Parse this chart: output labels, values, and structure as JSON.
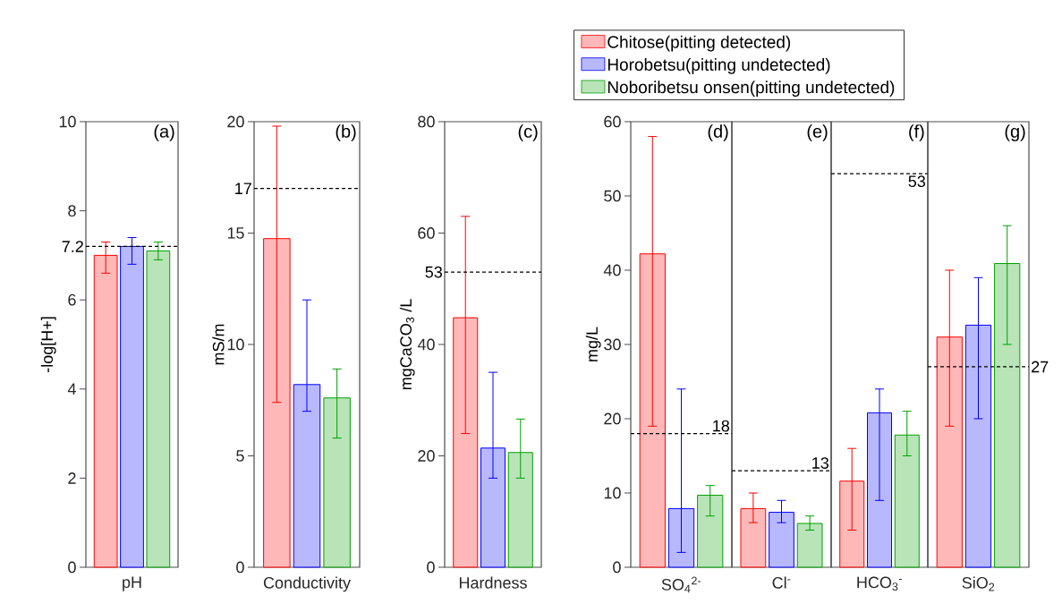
{
  "chart_data": [
    {
      "type": "bar",
      "title": "(a)",
      "categories": [
        "pH"
      ],
      "ylabel": "-log[H+]",
      "ylim": [
        0,
        10
      ],
      "yticks": [
        0,
        2,
        4,
        6,
        8,
        10
      ],
      "series": [
        {
          "color": "#ff0000",
          "values": [
            7.0
          ],
          "errors": [
            [
              6.6,
              7.3
            ]
          ]
        },
        {
          "color": "#0000ff",
          "values": [
            7.2
          ],
          "errors": [
            [
              6.8,
              7.4
            ]
          ]
        },
        {
          "color": "#00a000",
          "values": [
            7.1
          ],
          "errors": [
            [
              6.9,
              7.3
            ]
          ]
        }
      ],
      "ref_lines": [
        {
          "axis": "y",
          "value": 7.2,
          "label": "7.2",
          "color": "#000000",
          "line_style": "dashed"
        }
      ]
    },
    {
      "type": "bar",
      "title": "(b)",
      "categories": [
        "Conductivity"
      ],
      "ylabel": "mS/m",
      "ylim": [
        0,
        20
      ],
      "yticks": [
        0,
        5,
        10,
        15,
        20
      ],
      "series": [
        {
          "color": "#ff0000",
          "values": [
            14.75
          ],
          "errors": [
            [
              7.4,
              19.8
            ]
          ]
        },
        {
          "color": "#0000ff",
          "values": [
            8.2
          ],
          "errors": [
            [
              7.0,
              12.0
            ]
          ]
        },
        {
          "color": "#00a000",
          "values": [
            7.6
          ],
          "errors": [
            [
              5.8,
              8.9
            ]
          ]
        }
      ],
      "ref_lines": [
        {
          "axis": "y",
          "value": 17,
          "label": "17",
          "color": "#000000",
          "line_style": "dashed"
        }
      ]
    },
    {
      "type": "bar",
      "title": "(c)",
      "categories": [
        "Hardness"
      ],
      "ylabel": "mgCaCO$_{3}$ /L",
      "ylim": [
        0,
        80
      ],
      "yticks": [
        0,
        20,
        40,
        60,
        80
      ],
      "series": [
        {
          "color": "#ff0000",
          "values": [
            44.8
          ],
          "errors": [
            [
              24.0,
              63.0
            ]
          ]
        },
        {
          "color": "#0000ff",
          "values": [
            21.4
          ],
          "errors": [
            [
              16.0,
              35.0
            ]
          ]
        },
        {
          "color": "#00a000",
          "values": [
            20.6
          ],
          "errors": [
            [
              16.0,
              26.6
            ]
          ]
        }
      ],
      "ref_lines": [
        {
          "axis": "y",
          "value": 53,
          "label": "53",
          "color": "#000000",
          "line_style": "dashed"
        }
      ]
    },
    {
      "type": "bar",
      "title": "(d)",
      "categories": [
        "SO$_{4}$$^{2-}$"
      ],
      "ylabel": "mg/L",
      "ylim": [
        0,
        60
      ],
      "yticks": [
        0,
        10,
        20,
        30,
        40,
        50,
        60
      ],
      "legend": "top",
      "series": [
        {
          "name": "Chitose(pitting detected)",
          "color": "#ff0000",
          "values": [
            42.2
          ],
          "errors": [
            [
              19.0,
              58.0
            ]
          ]
        },
        {
          "name": "Horobetsu(pitting undetected)",
          "color": "#0000ff",
          "values": [
            7.9
          ],
          "errors": [
            [
              2.0,
              24.0
            ]
          ]
        },
        {
          "name": "Noboribetsu onsen(pitting undetected)",
          "color": "#00a000",
          "values": [
            9.7
          ],
          "errors": [
            [
              6.9,
              11.0
            ]
          ]
        }
      ],
      "ref_lines": [
        {
          "axis": "y",
          "value": 18,
          "label": "18",
          "color": "#000000",
          "line_style": "dashed"
        }
      ]
    },
    {
      "type": "bar",
      "title": "(e)",
      "categories": [
        "Cl$^{-}$"
      ],
      "ylim": [
        0,
        60
      ],
      "tick_labels": "x",
      "series": [
        {
          "color": "#ff0000",
          "values": [
            7.9
          ],
          "errors": [
            [
              6.0,
              10.0
            ]
          ]
        },
        {
          "color": "#0000ff",
          "values": [
            7.4
          ],
          "errors": [
            [
              6.0,
              9.0
            ]
          ]
        },
        {
          "color": "#00a000",
          "values": [
            5.9
          ],
          "errors": [
            [
              5.0,
              6.9
            ]
          ]
        }
      ],
      "ref_lines": [
        {
          "axis": "y",
          "value": 13,
          "label": "13",
          "color": "#000000",
          "line_style": "dashed"
        }
      ]
    },
    {
      "type": "bar",
      "title": "(f)",
      "categories": [
        "HCO$_{3}$$^{-}$"
      ],
      "ylim": [
        0,
        60
      ],
      "tick_labels": "x",
      "series": [
        {
          "color": "#ff0000",
          "values": [
            11.6
          ],
          "errors": [
            [
              5.0,
              16.0
            ]
          ]
        },
        {
          "color": "#0000ff",
          "values": [
            20.8
          ],
          "errors": [
            [
              9.0,
              24.0
            ]
          ]
        },
        {
          "color": "#00a000",
          "values": [
            17.8
          ],
          "errors": [
            [
              15.0,
              21.0
            ]
          ]
        }
      ],
      "ref_lines": [
        {
          "axis": "y",
          "value": 53,
          "label": "53",
          "color": "#000000",
          "line_style": "dashed"
        }
      ]
    },
    {
      "type": "bar",
      "title": "(g)",
      "categories": [
        "SiO$_{2}$"
      ],
      "ylim": [
        0,
        60
      ],
      "tick_labels": "x",
      "series": [
        {
          "color": "#ff0000",
          "values": [
            31.0
          ],
          "errors": [
            [
              19.0,
              40.0
            ]
          ]
        },
        {
          "color": "#0000ff",
          "values": [
            32.6
          ],
          "errors": [
            [
              20.0,
              39.0
            ]
          ]
        },
        {
          "color": "#00a000",
          "values": [
            40.9
          ],
          "errors": [
            [
              30.0,
              46.0
            ]
          ]
        }
      ],
      "ref_lines": [
        {
          "axis": "y",
          "value": 27,
          "label": "27",
          "color": "#000000",
          "line_style": "dashed"
        }
      ]
    }
  ]
}
